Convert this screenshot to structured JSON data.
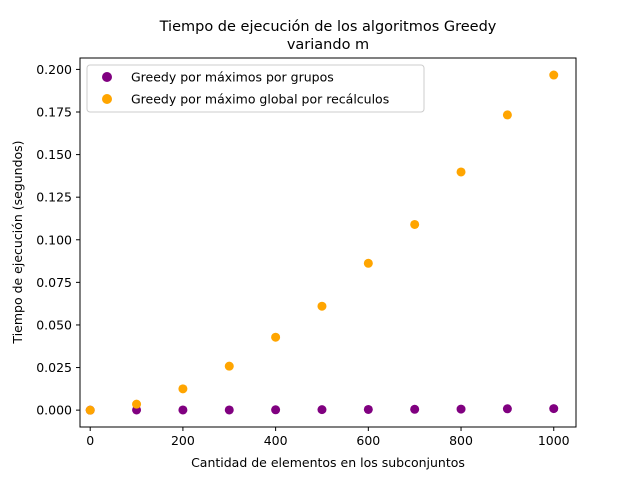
{
  "chart_data": {
    "type": "scatter",
    "title_lines": [
      "Tiempo de ejecución de los algoritmos Greedy",
      "variando m"
    ],
    "xlabel": "Cantidad de elementos en los subconjuntos",
    "ylabel": "Tiempo de ejecución (segundos)",
    "xlim": [
      -22,
      1048
    ],
    "ylim": [
      -0.0099,
      0.2067
    ],
    "xticks": [
      0,
      200,
      400,
      600,
      800,
      1000
    ],
    "xtick_labels": [
      "0",
      "200",
      "400",
      "600",
      "800",
      "1000"
    ],
    "yticks": [
      0.0,
      0.025,
      0.05,
      0.075,
      0.1,
      0.125,
      0.15,
      0.175,
      0.2
    ],
    "ytick_labels": [
      "0.000",
      "0.025",
      "0.050",
      "0.075",
      "0.100",
      "0.125",
      "0.150",
      "0.175",
      "0.200"
    ],
    "grid": false,
    "legend_position": "upper-left",
    "series": [
      {
        "name": "Greedy por máximos por grupos",
        "color": "#800080",
        "x": [
          0,
          100,
          200,
          300,
          400,
          500,
          600,
          700,
          800,
          900,
          1000
        ],
        "y": [
          0.0,
          0.0001,
          0.0001,
          0.0001,
          0.0002,
          0.0003,
          0.0004,
          0.0005,
          0.0006,
          0.0008,
          0.0009
        ]
      },
      {
        "name": "Greedy por máximo global por recálculos",
        "color": "#ffa500",
        "x": [
          0,
          100,
          200,
          300,
          400,
          500,
          600,
          700,
          800,
          900,
          1000
        ],
        "y": [
          0.0,
          0.0035,
          0.0125,
          0.0258,
          0.0428,
          0.061,
          0.0862,
          0.109,
          0.1398,
          0.1733,
          0.1967
        ]
      }
    ]
  }
}
